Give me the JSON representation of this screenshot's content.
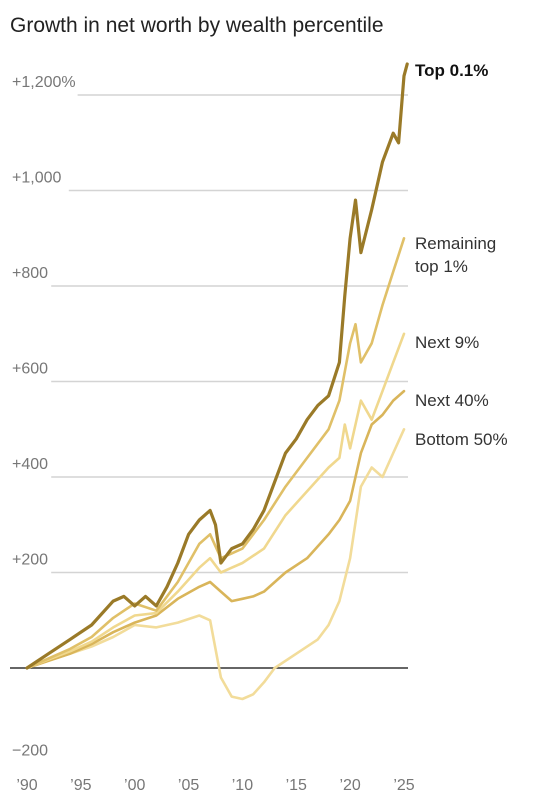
{
  "chart_data": {
    "type": "line",
    "title": "Growth in net worth by wealth percentile",
    "xlabel": "",
    "ylabel": "",
    "xlim": [
      1990,
      2025.5
    ],
    "ylim": [
      -200,
      1300
    ],
    "grid": true,
    "legend": "direct labels at right end of lines",
    "y_ticks": [
      {
        "value": 1200,
        "label": "+1,200%"
      },
      {
        "value": 1000,
        "label": "+1,000"
      },
      {
        "value": 800,
        "label": "+800"
      },
      {
        "value": 600,
        "label": "+600"
      },
      {
        "value": 400,
        "label": "+400"
      },
      {
        "value": 200,
        "label": "+200"
      },
      {
        "value": -200,
        "label": "−200"
      }
    ],
    "x_ticks": [
      {
        "value": 1990,
        "label": "’90"
      },
      {
        "value": 1995,
        "label": "’95"
      },
      {
        "value": 2000,
        "label": "’00"
      },
      {
        "value": 2005,
        "label": "’05"
      },
      {
        "value": 2010,
        "label": "’10"
      },
      {
        "value": 2015,
        "label": "’15"
      },
      {
        "value": 2020,
        "label": "’20"
      },
      {
        "value": 2025,
        "label": "’25"
      }
    ],
    "series": [
      {
        "name": "Bottom 50%",
        "color": "#f2dc9a",
        "points": [
          [
            1990,
            0
          ],
          [
            1992,
            15
          ],
          [
            1994,
            30
          ],
          [
            1996,
            45
          ],
          [
            1998,
            65
          ],
          [
            2000,
            90
          ],
          [
            2002,
            85
          ],
          [
            2004,
            95
          ],
          [
            2006,
            110
          ],
          [
            2007,
            100
          ],
          [
            2008,
            -20
          ],
          [
            2009,
            -60
          ],
          [
            2010,
            -65
          ],
          [
            2011,
            -55
          ],
          [
            2012,
            -30
          ],
          [
            2013,
            0
          ],
          [
            2015,
            30
          ],
          [
            2017,
            60
          ],
          [
            2018,
            90
          ],
          [
            2019,
            140
          ],
          [
            2020,
            230
          ],
          [
            2021,
            380
          ],
          [
            2022,
            420
          ],
          [
            2023,
            400
          ],
          [
            2024,
            450
          ],
          [
            2025,
            500
          ]
        ]
      },
      {
        "name": "Next 40%",
        "color": "#d9b55a",
        "points": [
          [
            1990,
            0
          ],
          [
            1992,
            15
          ],
          [
            1994,
            30
          ],
          [
            1996,
            50
          ],
          [
            1998,
            75
          ],
          [
            2000,
            95
          ],
          [
            2002,
            110
          ],
          [
            2004,
            145
          ],
          [
            2006,
            170
          ],
          [
            2007,
            180
          ],
          [
            2008,
            160
          ],
          [
            2009,
            140
          ],
          [
            2010,
            145
          ],
          [
            2011,
            150
          ],
          [
            2012,
            160
          ],
          [
            2014,
            200
          ],
          [
            2016,
            230
          ],
          [
            2018,
            280
          ],
          [
            2019,
            310
          ],
          [
            2020,
            350
          ],
          [
            2021,
            450
          ],
          [
            2022,
            510
          ],
          [
            2023,
            530
          ],
          [
            2024,
            560
          ],
          [
            2025,
            580
          ]
        ]
      },
      {
        "name": "Next 9%",
        "color": "#f0d88e",
        "points": [
          [
            1990,
            0
          ],
          [
            1992,
            18
          ],
          [
            1994,
            35
          ],
          [
            1996,
            55
          ],
          [
            1998,
            85
          ],
          [
            2000,
            110
          ],
          [
            2002,
            115
          ],
          [
            2004,
            160
          ],
          [
            2006,
            210
          ],
          [
            2007,
            230
          ],
          [
            2008,
            200
          ],
          [
            2009,
            210
          ],
          [
            2010,
            220
          ],
          [
            2012,
            250
          ],
          [
            2014,
            320
          ],
          [
            2016,
            370
          ],
          [
            2018,
            420
          ],
          [
            2019,
            440
          ],
          [
            2019.5,
            510
          ],
          [
            2020,
            460
          ],
          [
            2021,
            560
          ],
          [
            2022,
            520
          ],
          [
            2023,
            580
          ],
          [
            2024,
            640
          ],
          [
            2025,
            700
          ]
        ]
      },
      {
        "name": "Remaining top 1%",
        "color": "#e0c068",
        "points": [
          [
            1990,
            0
          ],
          [
            1992,
            20
          ],
          [
            1994,
            40
          ],
          [
            1996,
            65
          ],
          [
            1998,
            105
          ],
          [
            2000,
            135
          ],
          [
            2002,
            120
          ],
          [
            2004,
            180
          ],
          [
            2006,
            260
          ],
          [
            2007,
            280
          ],
          [
            2008,
            230
          ],
          [
            2009,
            240
          ],
          [
            2010,
            250
          ],
          [
            2012,
            310
          ],
          [
            2014,
            380
          ],
          [
            2016,
            440
          ],
          [
            2018,
            500
          ],
          [
            2019,
            560
          ],
          [
            2020,
            680
          ],
          [
            2020.5,
            720
          ],
          [
            2021,
            640
          ],
          [
            2022,
            680
          ],
          [
            2023,
            760
          ],
          [
            2024,
            830
          ],
          [
            2025,
            900
          ]
        ]
      },
      {
        "name": "Top 0.1%",
        "color": "#9a7a28",
        "points": [
          [
            1990,
            0
          ],
          [
            1992,
            30
          ],
          [
            1994,
            60
          ],
          [
            1996,
            90
          ],
          [
            1998,
            140
          ],
          [
            1999,
            150
          ],
          [
            2000,
            130
          ],
          [
            2001,
            150
          ],
          [
            2002,
            130
          ],
          [
            2003,
            170
          ],
          [
            2004,
            220
          ],
          [
            2005,
            280
          ],
          [
            2006,
            310
          ],
          [
            2007,
            330
          ],
          [
            2007.5,
            300
          ],
          [
            2008,
            220
          ],
          [
            2009,
            250
          ],
          [
            2010,
            260
          ],
          [
            2011,
            290
          ],
          [
            2012,
            330
          ],
          [
            2013,
            390
          ],
          [
            2014,
            450
          ],
          [
            2015,
            480
          ],
          [
            2016,
            520
          ],
          [
            2017,
            550
          ],
          [
            2018,
            570
          ],
          [
            2019,
            640
          ],
          [
            2019.5,
            780
          ],
          [
            2020,
            900
          ],
          [
            2020.5,
            980
          ],
          [
            2021,
            870
          ],
          [
            2022,
            960
          ],
          [
            2023,
            1060
          ],
          [
            2024,
            1120
          ],
          [
            2024.5,
            1100
          ],
          [
            2025,
            1240
          ],
          [
            2025.3,
            1265
          ]
        ]
      }
    ]
  }
}
